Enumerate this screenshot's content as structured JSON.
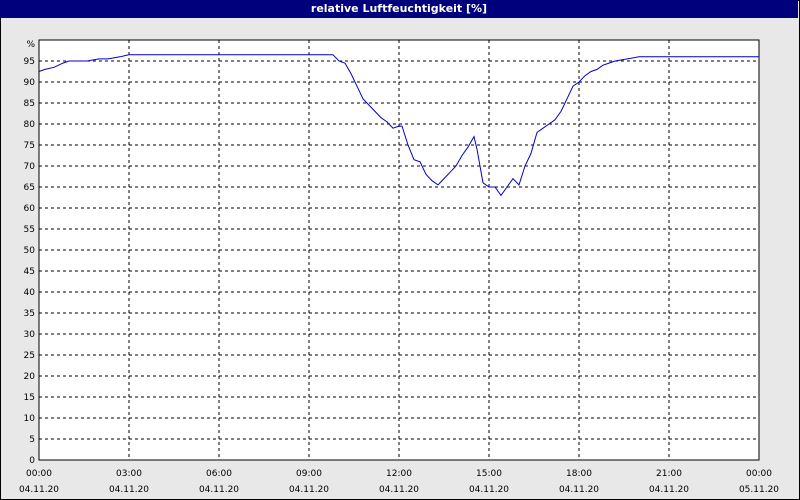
{
  "window": {
    "title": "relative Luftfeuchtigkeit [%]"
  },
  "chart_data": {
    "type": "line",
    "title": "relative Luftfeuchtigkeit [%]",
    "y_unit_label": "%",
    "ylim": [
      0,
      100
    ],
    "y_ticks": [
      0,
      5,
      10,
      15,
      20,
      25,
      30,
      35,
      40,
      45,
      50,
      55,
      60,
      65,
      70,
      75,
      80,
      85,
      90,
      95
    ],
    "xlim_hours": [
      0,
      24
    ],
    "x_ticks": [
      {
        "hour": 0,
        "time": "00:00",
        "date": "04.11.20"
      },
      {
        "hour": 3,
        "time": "03:00",
        "date": "04.11.20"
      },
      {
        "hour": 6,
        "time": "06:00",
        "date": "04.11.20"
      },
      {
        "hour": 9,
        "time": "09:00",
        "date": "04.11.20"
      },
      {
        "hour": 12,
        "time": "12:00",
        "date": "04.11.20"
      },
      {
        "hour": 15,
        "time": "15:00",
        "date": "04.11.20"
      },
      {
        "hour": 18,
        "time": "18:00",
        "date": "04.11.20"
      },
      {
        "hour": 21,
        "time": "21:00",
        "date": "04.11.20"
      },
      {
        "hour": 24,
        "time": "00:00",
        "date": "05.11.20"
      }
    ],
    "grid": true,
    "line_color": "#0000cc",
    "series": [
      {
        "x": [
          0,
          0.2,
          0.5,
          0.8,
          1.0,
          1.3,
          1.6,
          2.0,
          2.3,
          2.7,
          3.0,
          3.5,
          5.0,
          7.0,
          9.0,
          9.8,
          10.0,
          10.2,
          10.4,
          10.6,
          10.8,
          11.0,
          11.2,
          11.4,
          11.6,
          11.8,
          12.0,
          12.1,
          12.3,
          12.5,
          12.7,
          12.9,
          13.1,
          13.3,
          13.5,
          13.7,
          13.9,
          14.1,
          14.3,
          14.5,
          14.6,
          14.8,
          15.0,
          15.2,
          15.4,
          15.6,
          15.8,
          16.0,
          16.2,
          16.4,
          16.6,
          16.8,
          17.0,
          17.2,
          17.4,
          17.6,
          17.8,
          18.0,
          18.2,
          18.4,
          18.6,
          18.8,
          19.0,
          19.2,
          20.0,
          22.0,
          24.0
        ],
        "y": [
          92.5,
          93,
          93.5,
          94.5,
          95,
          95,
          95,
          95.5,
          95.5,
          96,
          96.5,
          96.5,
          96.5,
          96.5,
          96.5,
          96.5,
          95,
          94.5,
          92,
          89,
          86,
          84.5,
          83,
          81.5,
          80.5,
          79,
          79.5,
          79.5,
          75,
          71.5,
          71,
          68,
          66.5,
          65.5,
          67,
          68.5,
          70,
          72.5,
          74.5,
          77,
          74,
          66,
          65,
          65,
          63,
          65,
          67,
          65.5,
          70,
          73,
          78,
          79,
          80,
          81,
          83,
          86,
          89,
          90,
          91.5,
          92.5,
          93,
          94,
          94.5,
          95,
          96,
          96,
          96
        ]
      }
    ]
  }
}
